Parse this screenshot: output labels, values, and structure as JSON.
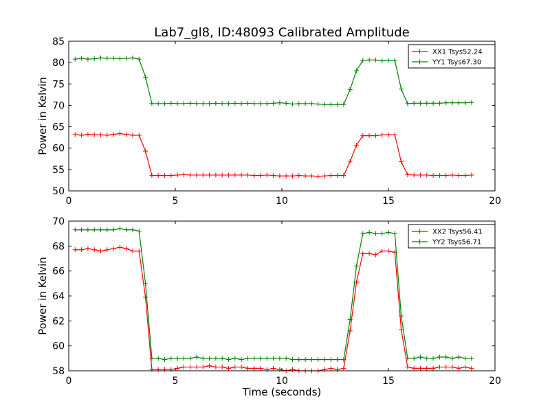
{
  "figure": {
    "title": "Lab7_gl8, ID:48093 Calibrated Amplitude"
  },
  "chart_data": [
    {
      "type": "line",
      "title": "Lab7_gl8, ID:48093 Calibrated Amplitude",
      "xlabel": "",
      "ylabel": "Power in Kelvin",
      "xlim": [
        0,
        20
      ],
      "ylim": [
        50,
        85
      ],
      "xticks": [
        0,
        5,
        10,
        15,
        20
      ],
      "yticks": [
        50,
        55,
        60,
        65,
        70,
        75,
        80,
        85
      ],
      "grid": false,
      "legend": "top-right",
      "x": [
        0.3,
        0.6,
        0.9,
        1.2,
        1.5,
        1.8,
        2.1,
        2.4,
        2.7,
        3.0,
        3.3,
        3.6,
        3.9,
        4.2,
        4.5,
        4.8,
        5.1,
        5.4,
        5.7,
        6.0,
        6.3,
        6.6,
        6.9,
        7.2,
        7.5,
        7.8,
        8.1,
        8.4,
        8.7,
        9.0,
        9.3,
        9.6,
        9.9,
        10.2,
        10.5,
        10.8,
        11.1,
        11.4,
        11.7,
        12.0,
        12.3,
        12.6,
        12.9,
        13.2,
        13.5,
        13.8,
        14.1,
        14.4,
        14.7,
        15.0,
        15.3,
        15.6,
        15.9,
        16.2,
        16.5,
        16.8,
        17.1,
        17.4,
        17.7,
        18.0,
        18.3,
        18.6,
        18.9
      ],
      "series": [
        {
          "name": "XX1 Tsys52.24",
          "color": "#ff0000",
          "values": [
            63.2,
            63.0,
            63.2,
            63.1,
            63.1,
            63.0,
            63.2,
            63.4,
            63.2,
            63.0,
            63.0,
            59.3,
            53.6,
            53.6,
            53.6,
            53.6,
            53.7,
            53.8,
            53.7,
            53.7,
            53.7,
            53.7,
            53.7,
            53.7,
            53.7,
            53.7,
            53.7,
            53.7,
            53.6,
            53.6,
            53.7,
            53.6,
            53.5,
            53.5,
            53.5,
            53.6,
            53.5,
            53.5,
            53.4,
            53.5,
            53.6,
            53.6,
            53.6,
            56.9,
            60.7,
            62.9,
            62.9,
            62.9,
            63.1,
            63.1,
            63.1,
            56.8,
            53.8,
            53.7,
            53.7,
            53.7,
            53.6,
            53.6,
            53.6,
            53.7,
            53.6,
            53.6,
            53.7
          ]
        },
        {
          "name": "YY1 Tsys67.30",
          "color": "#008000",
          "values": [
            80.8,
            81.0,
            80.8,
            80.9,
            81.1,
            81.0,
            81.0,
            80.9,
            81.0,
            81.1,
            80.8,
            76.6,
            70.4,
            70.4,
            70.4,
            70.5,
            70.4,
            70.4,
            70.5,
            70.4,
            70.4,
            70.4,
            70.5,
            70.4,
            70.4,
            70.5,
            70.4,
            70.5,
            70.4,
            70.4,
            70.4,
            70.5,
            70.6,
            70.5,
            70.3,
            70.4,
            70.4,
            70.4,
            70.3,
            70.2,
            70.2,
            70.2,
            70.2,
            73.7,
            78.1,
            80.5,
            80.6,
            80.6,
            80.4,
            80.5,
            80.5,
            73.8,
            70.4,
            70.5,
            70.5,
            70.5,
            70.5,
            70.5,
            70.6,
            70.6,
            70.6,
            70.6,
            70.7
          ]
        }
      ]
    },
    {
      "type": "line",
      "title": "",
      "xlabel": "Time (seconds)",
      "ylabel": "Power in Kelvin",
      "xlim": [
        0,
        20
      ],
      "ylim": [
        58,
        70
      ],
      "xticks": [
        0,
        5,
        10,
        15,
        20
      ],
      "yticks": [
        58,
        60,
        62,
        64,
        66,
        68,
        70
      ],
      "grid": false,
      "legend": "top-right",
      "x": [
        0.3,
        0.6,
        0.9,
        1.2,
        1.5,
        1.8,
        2.1,
        2.4,
        2.7,
        3.0,
        3.3,
        3.6,
        3.9,
        4.2,
        4.5,
        4.8,
        5.1,
        5.4,
        5.7,
        6.0,
        6.3,
        6.6,
        6.9,
        7.2,
        7.5,
        7.8,
        8.1,
        8.4,
        8.7,
        9.0,
        9.3,
        9.6,
        9.9,
        10.2,
        10.5,
        10.8,
        11.1,
        11.4,
        11.7,
        12.0,
        12.3,
        12.6,
        12.9,
        13.2,
        13.5,
        13.8,
        14.1,
        14.4,
        14.7,
        15.0,
        15.3,
        15.6,
        15.9,
        16.2,
        16.5,
        16.8,
        17.1,
        17.4,
        17.7,
        18.0,
        18.3,
        18.6,
        18.9
      ],
      "series": [
        {
          "name": "XX2 Tsys56.41",
          "color": "#ff0000",
          "values": [
            67.7,
            67.7,
            67.8,
            67.7,
            67.6,
            67.7,
            67.8,
            67.9,
            67.8,
            67.6,
            67.6,
            63.9,
            58.1,
            58.1,
            58.1,
            58.1,
            58.2,
            58.3,
            58.3,
            58.3,
            58.3,
            58.4,
            58.3,
            58.3,
            58.2,
            58.3,
            58.3,
            58.2,
            58.2,
            58.2,
            58.1,
            58.2,
            58.1,
            58.0,
            58.1,
            58.0,
            58.0,
            58.0,
            58.0,
            58.1,
            58.2,
            58.1,
            58.2,
            61.2,
            65.1,
            67.4,
            67.4,
            67.3,
            67.6,
            67.6,
            67.5,
            61.3,
            58.3,
            58.2,
            58.2,
            58.2,
            58.2,
            58.3,
            58.3,
            58.3,
            58.2,
            58.3,
            58.2
          ]
        },
        {
          "name": "YY2 Tsys56.71",
          "color": "#008000",
          "values": [
            69.3,
            69.3,
            69.3,
            69.3,
            69.3,
            69.3,
            69.3,
            69.4,
            69.3,
            69.3,
            69.2,
            65.0,
            59.0,
            59.0,
            58.9,
            59.0,
            59.0,
            59.0,
            59.0,
            59.1,
            59.0,
            59.0,
            59.0,
            59.0,
            58.9,
            59.0,
            58.9,
            59.0,
            59.0,
            59.0,
            59.0,
            59.0,
            59.0,
            59.0,
            58.9,
            58.9,
            58.9,
            58.9,
            58.9,
            58.9,
            58.9,
            58.9,
            58.9,
            62.1,
            66.4,
            69.0,
            69.1,
            69.0,
            69.0,
            69.1,
            69.0,
            62.4,
            59.0,
            59.0,
            59.1,
            59.0,
            59.0,
            59.1,
            59.1,
            59.0,
            59.1,
            59.0,
            59.0
          ]
        }
      ]
    }
  ]
}
